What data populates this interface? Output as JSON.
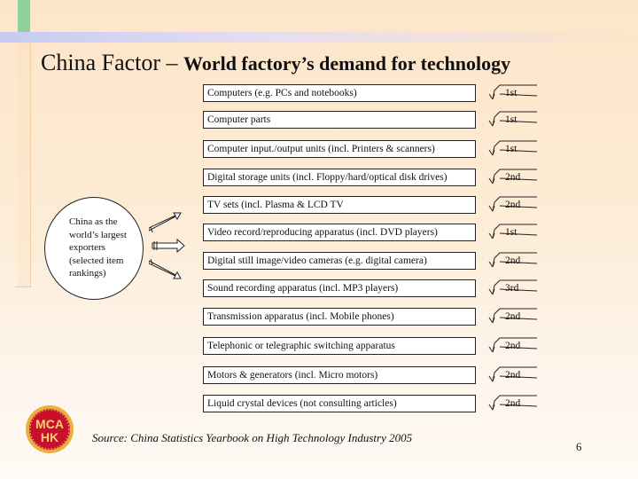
{
  "slide": {
    "title_part1": "China Factor – ",
    "title_part2": "World factory’s demand for technology",
    "oval_text": "China as the world’s largest exporters (selected item rankings)",
    "items": [
      {
        "label": "Computers (e.g. PCs and notebooks)",
        "rank": "1st"
      },
      {
        "label": "Computer parts",
        "rank": "1st"
      },
      {
        "label": "Computer input./output units (incl. Printers & scanners)",
        "rank": "1st"
      },
      {
        "label": "Digital storage units (incl. Floppy/hard/optical disk drives)",
        "rank": "2nd"
      },
      {
        "label": "TV sets (incl. Plasma & LCD TV",
        "rank": "2nd"
      },
      {
        "label": "Video record/reproducing apparatus (incl. DVD players)",
        "rank": "1st"
      },
      {
        "label": "Digital still image/video cameras (e.g. digital camera)",
        "rank": "2nd"
      },
      {
        "label": "Sound recording apparatus (incl. MP3 players)",
        "rank": "3rd"
      },
      {
        "label": "Transmission apparatus (incl. Mobile phones)",
        "rank": "2nd"
      },
      {
        "label": "Telephonic or telegraphic switching apparatus",
        "rank": "2nd"
      },
      {
        "label": "Motors & generators (incl. Micro motors)",
        "rank": "2nd"
      },
      {
        "label": "Liquid crystal devices (not consulting articles)",
        "rank": "2nd"
      }
    ],
    "source": "Source: China Statistics Yearbook on High Technology Industry 2005",
    "page_number": "6"
  },
  "logo": {
    "line1": "MCA",
    "line2": "HK",
    "color": "#c8102e",
    "ring_color": "#e8b23a"
  },
  "colors": {
    "accent_green": "#8fd19a",
    "accent_lavender": "#c5cbf3",
    "background": "#fde5c8"
  }
}
